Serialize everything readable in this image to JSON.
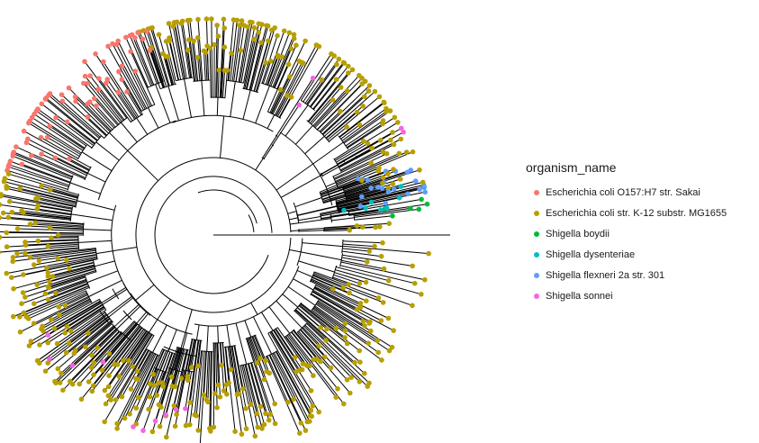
{
  "chart_data": {
    "type": "circular-phylogenetic-tree",
    "title": "",
    "xlabel": "",
    "ylabel": "",
    "grid": false,
    "legend": {
      "title": "organism_name",
      "placement": "right",
      "entries": [
        {
          "name": "Escherichia coli O157:H7 str. Sakai",
          "color": "#F8766D"
        },
        {
          "name": "Escherichia coli str. K-12 substr. MG1655",
          "color": "#B79F00"
        },
        {
          "name": "Shigella boydii",
          "color": "#00BA38"
        },
        {
          "name": "Shigella dysenteriae",
          "color": "#00BFC4"
        },
        {
          "name": "Shigella flexneri 2a str. 301",
          "color": "#619CFF"
        },
        {
          "name": "Shigella sonnei",
          "color": "#F564E3"
        }
      ]
    },
    "clades": [
      {
        "series": "Escherichia coli str. K-12 substr. MG1655",
        "angle_start": 2,
        "angle_end": 4,
        "tips": 6
      },
      {
        "series": "Shigella boydii",
        "angle_start": 6,
        "angle_end": 10,
        "tips": 6
      },
      {
        "series": "Shigella dysenteriae",
        "angle_start": 8,
        "angle_end": 15,
        "tips": 10
      },
      {
        "series": "Shigella flexneri 2a str. 301",
        "angle_start": 10,
        "angle_end": 22,
        "tips": 22
      },
      {
        "series": "Escherichia coli str. K-12 substr. MG1655",
        "angle_start": 14,
        "angle_end": 57,
        "tips": 60
      },
      {
        "series": "Shigella sonnei",
        "angle_start": 28,
        "angle_end": 30,
        "tips": 1
      },
      {
        "series": "Escherichia coli str. K-12 substr. MG1655",
        "angle_start": 60,
        "angle_end": 110,
        "tips": 90
      },
      {
        "series": "Shigella sonnei",
        "angle_start": 56,
        "angle_end": 58,
        "tips": 1
      },
      {
        "series": "Escherichia coli O157:H7 str. Sakai",
        "angle_start": 108,
        "angle_end": 163,
        "tips": 70
      },
      {
        "series": "Escherichia coli str. K-12 substr. MG1655",
        "angle_start": 163,
        "angle_end": 215,
        "tips": 90
      },
      {
        "series": "Shigella sonnei",
        "angle_start": 208,
        "angle_end": 232,
        "tips": 5
      },
      {
        "series": "Escherichia coli str. K-12 substr. MG1655",
        "angle_start": 215,
        "angle_end": 258,
        "tips": 80
      },
      {
        "series": "Shigella sonnei",
        "angle_start": 246,
        "angle_end": 262,
        "tips": 5
      },
      {
        "series": "Escherichia coli str. K-12 substr. MG1655",
        "angle_start": 258,
        "angle_end": 340,
        "tips": 130
      },
      {
        "series": "Escherichia coli str. K-12 substr. MG1655",
        "angle_start": 340,
        "angle_end": 358,
        "tips": 14
      }
    ]
  }
}
